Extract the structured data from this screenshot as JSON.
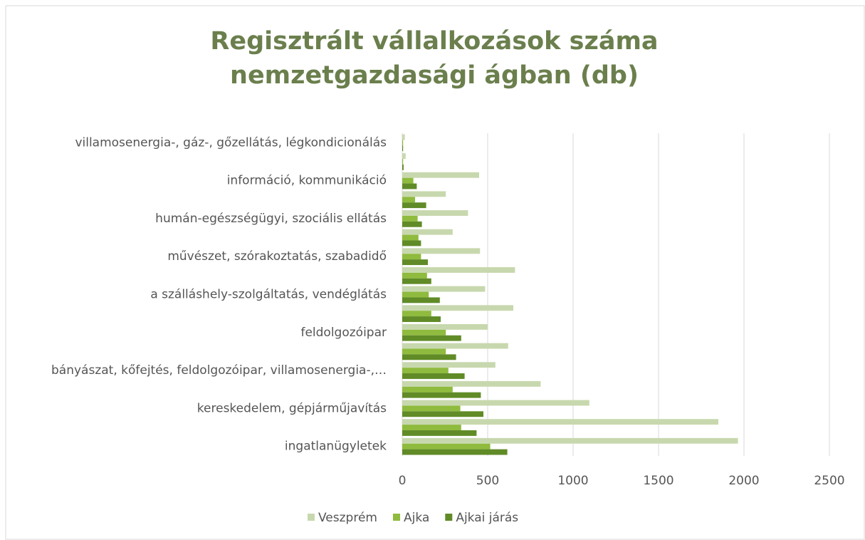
{
  "chart_data": {
    "type": "hbar",
    "title": "Regisztrált vállalkozások száma nemzetgazdasági ágban (db)",
    "categories": [
      "ingatlanügyletek",
      null,
      "kereskedelem, gépjárműjavítás",
      null,
      "bányászat, kőfejtés, feldolgozóipar, villamosenergia-,…",
      null,
      "feldolgozóipar",
      null,
      "a szálláshely-szolgáltatás, vendéglátás",
      null,
      "művészet, szórakoztatás, szabadidő",
      null,
      "humán-egészségügyi, szociális ellátás",
      null,
      "információ, kommunikáció",
      null,
      "villamosenergia-, gáz-, gőzellátás, légkondicionálás"
    ],
    "series": [
      {
        "name": "Veszprém",
        "color": "#c8d8ae",
        "values": [
          1965,
          1850,
          1095,
          810,
          545,
          620,
          500,
          650,
          485,
          660,
          455,
          295,
          385,
          255,
          450,
          20,
          15
        ]
      },
      {
        "name": "Ajka",
        "color": "#8fbb3e",
        "values": [
          515,
          345,
          340,
          295,
          270,
          255,
          255,
          170,
          155,
          145,
          110,
          95,
          90,
          75,
          65,
          5,
          5
        ]
      },
      {
        "name": "Ajkai járás",
        "color": "#608b27",
        "values": [
          615,
          435,
          475,
          460,
          365,
          315,
          345,
          225,
          220,
          170,
          150,
          110,
          115,
          140,
          85,
          8,
          5
        ]
      }
    ],
    "xlim": [
      0,
      2500
    ],
    "xticks": [
      0,
      500,
      1000,
      1500,
      2000,
      2500
    ],
    "grid": true,
    "legend": "bottom"
  }
}
